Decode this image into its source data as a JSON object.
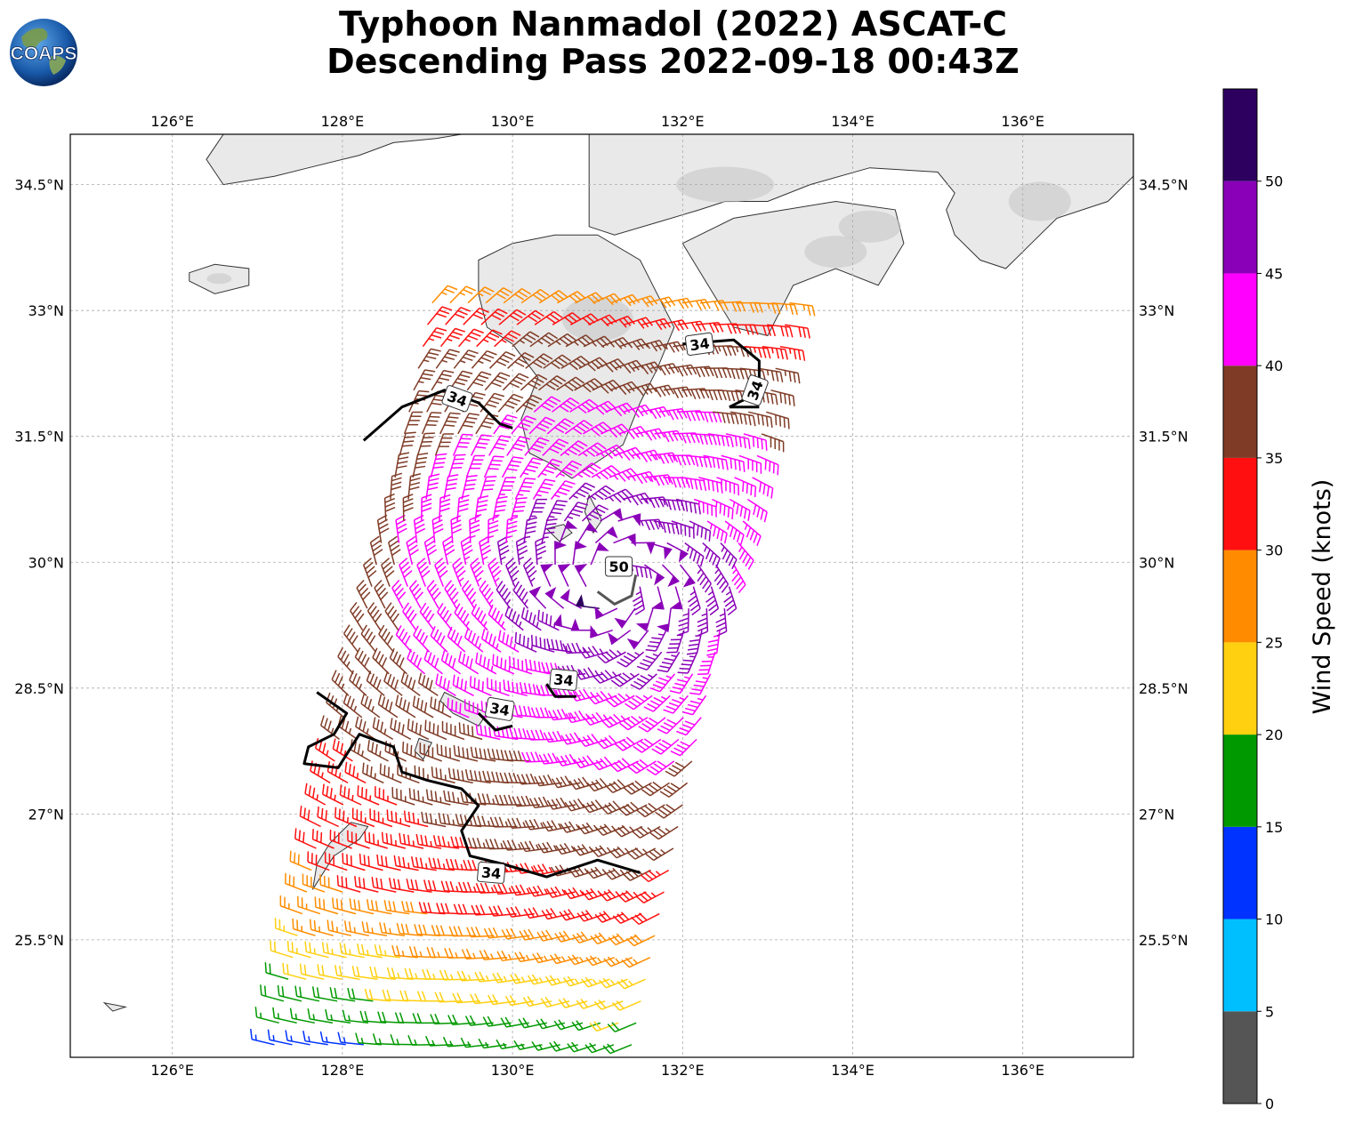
{
  "header": {
    "title_line1": "Typhoon Nanmadol (2022) ASCAT-C",
    "title_line2": "Descending Pass 2022-09-18 00:43Z",
    "logo_text": "COAPS"
  },
  "axes": {
    "lon_labels": [
      "126°E",
      "128°E",
      "130°E",
      "132°E",
      "134°E",
      "136°E"
    ],
    "lat_labels": [
      "34.5°N",
      "33°N",
      "31.5°N",
      "30°N",
      "28.5°N",
      "27°N",
      "25.5°N"
    ],
    "lon_range": [
      124.8,
      137.3
    ],
    "lat_range": [
      24.1,
      35.1
    ]
  },
  "colorbar": {
    "label": "Wind Speed (knots)",
    "ticks": [
      "0",
      "5",
      "10",
      "15",
      "20",
      "25",
      "30",
      "35",
      "40",
      "45",
      "50"
    ],
    "bins": [
      {
        "min": 0,
        "max": 5,
        "color": "#555555"
      },
      {
        "min": 5,
        "max": 10,
        "color": "#00bfff"
      },
      {
        "min": 10,
        "max": 15,
        "color": "#0033ff"
      },
      {
        "min": 15,
        "max": 20,
        "color": "#009900"
      },
      {
        "min": 20,
        "max": 25,
        "color": "#ffd010"
      },
      {
        "min": 25,
        "max": 30,
        "color": "#ff8c00"
      },
      {
        "min": 30,
        "max": 35,
        "color": "#ff0f0f"
      },
      {
        "min": 35,
        "max": 40,
        "color": "#7f3b26"
      },
      {
        "min": 40,
        "max": 45,
        "color": "#ff00ff"
      },
      {
        "min": 45,
        "max": 50,
        "color": "#8a00b8"
      },
      {
        "min": 50,
        "max": 55,
        "color": "#2d0060"
      }
    ]
  },
  "contour_labels": [
    "34",
    "34",
    "34",
    "50",
    "34",
    "34",
    "34"
  ],
  "storm_center": {
    "lon": 131.2,
    "lat": 29.75
  },
  "swath": {
    "center_lon_south": 129.3,
    "center_lon_north": 131.2,
    "lat_south": 24.25,
    "lat_north": 33.3
  },
  "colors": {
    "land": "#e9e9e9",
    "coast": "#333333",
    "grid": "#aaaaaa",
    "ocean": "#ffffff"
  }
}
